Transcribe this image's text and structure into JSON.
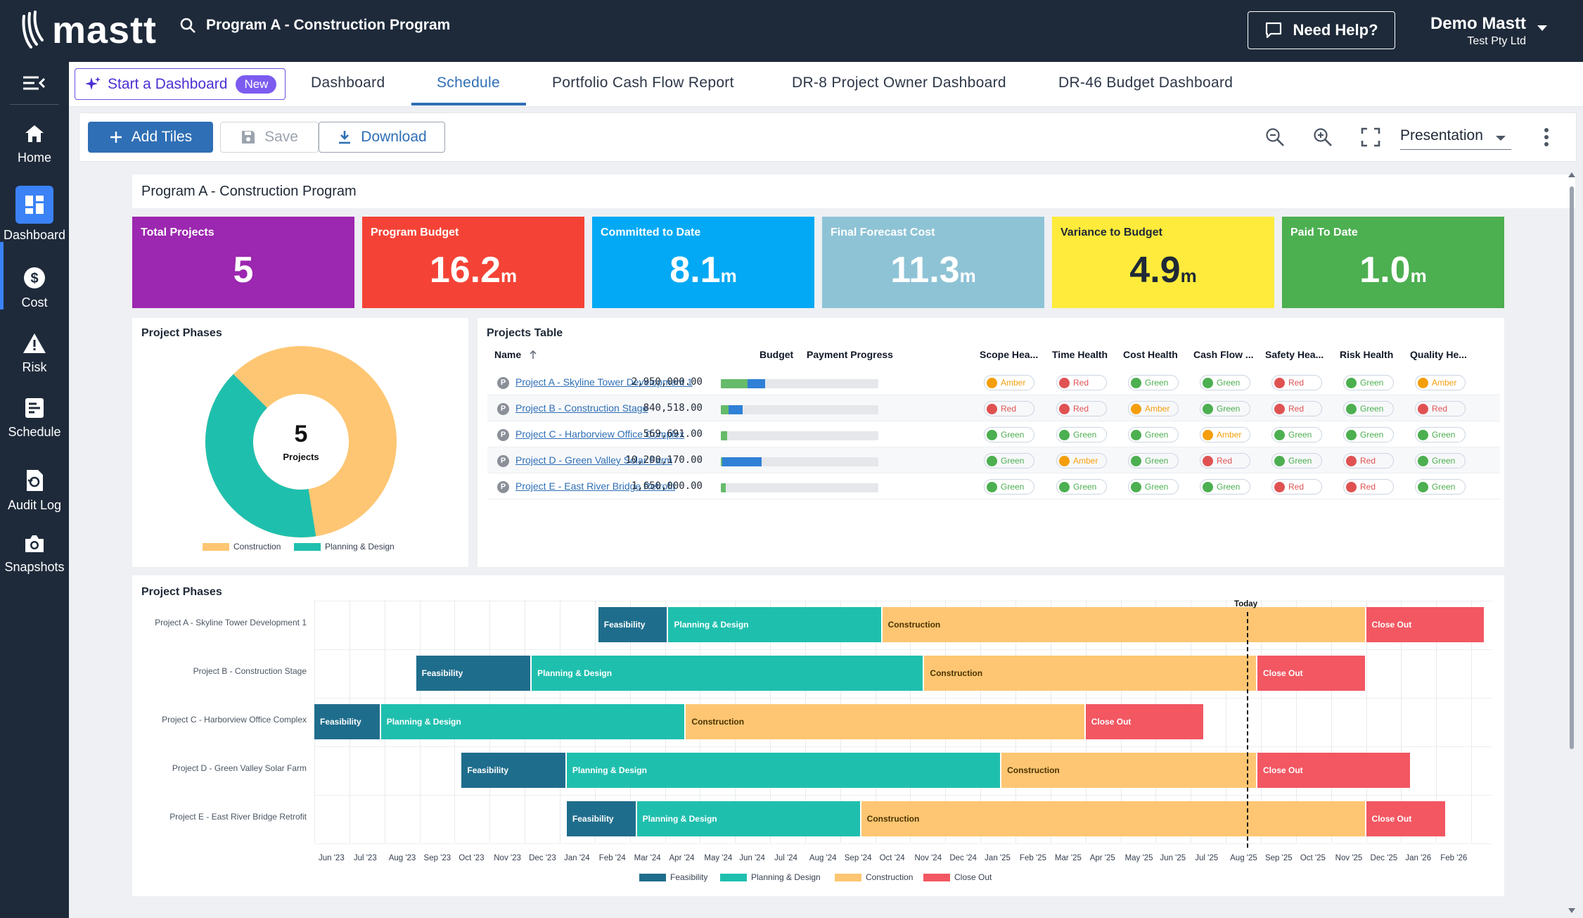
{
  "header": {
    "brand": "mastt",
    "search_text": "Program A - Construction Program",
    "help_label": "Need Help?",
    "user_name": "Demo Mastt",
    "user_org": "Test Pty Ltd"
  },
  "sidebar": {
    "items": [
      {
        "label": "Home",
        "icon": "home-icon"
      },
      {
        "label": "Dashboard",
        "icon": "dashboard-icon"
      },
      {
        "label": "Cost",
        "icon": "dollar-icon"
      },
      {
        "label": "Risk",
        "icon": "warning-icon"
      },
      {
        "label": "Schedule",
        "icon": "schedule-icon"
      },
      {
        "label": "Audit Log",
        "icon": "audit-icon"
      },
      {
        "label": "Snapshots",
        "icon": "camera-icon"
      }
    ]
  },
  "tabs": {
    "start_label": "Start a Dashboard",
    "new_badge": "New",
    "items": [
      "Dashboard",
      "Schedule",
      "Portfolio Cash Flow Report",
      "DR-8 Project Owner Dashboard",
      "DR-46 Budget Dashboard"
    ],
    "active": "Schedule"
  },
  "toolbar": {
    "add_tiles": "Add Tiles",
    "save": "Save",
    "download": "Download",
    "view_mode": "Presentation"
  },
  "page_title": "Program A - Construction Program",
  "kpis": [
    {
      "label": "Total Projects",
      "value": "5",
      "unit": "",
      "color": "#9c27b0"
    },
    {
      "label": "Program Budget",
      "value": "16.2",
      "unit": "m",
      "color": "#f44336"
    },
    {
      "label": "Committed to Date",
      "value": "8.1",
      "unit": "m",
      "color": "#03a9f4"
    },
    {
      "label": "Final Forecast Cost",
      "value": "11.3",
      "unit": "m",
      "color": "#8ec3d6"
    },
    {
      "label": "Variance to Budget",
      "value": "4.9",
      "unit": "m",
      "color": "#ffeb3b"
    },
    {
      "label": "Paid To Date",
      "value": "1.0",
      "unit": "m",
      "color": "#4caf50"
    }
  ],
  "donut": {
    "title": "Project Phases",
    "center_value": "5",
    "center_label": "Projects",
    "legend": [
      "Construction",
      "Planning & Design"
    ]
  },
  "projects_table": {
    "title": "Projects Table",
    "columns": [
      "Name",
      "Budget",
      "Payment Progress",
      "Scope Hea...",
      "Time Health",
      "Cost Health",
      "Cash Flow ...",
      "Safety Hea...",
      "Risk Health",
      "Quality He..."
    ],
    "rows": [
      {
        "icon": "P",
        "name": "Project A - Skyline Tower Development 1",
        "budget": "2,950,000.00",
        "progress": {
          "paid": 0.17,
          "committed": 0.28
        },
        "health": [
          "Amber",
          "Red",
          "Green",
          "Green",
          "Red",
          "Green",
          "Amber"
        ]
      },
      {
        "icon": "P",
        "name": "Project B - Construction Stage",
        "budget": "840,518.00",
        "progress": {
          "paid": 0.05,
          "committed": 0.14
        },
        "health": [
          "Red",
          "Red",
          "Amber",
          "Green",
          "Red",
          "Green",
          "Red"
        ]
      },
      {
        "icon": "P",
        "name": "Project C - Harborview Office Complex",
        "budget": "569,691.00",
        "progress": {
          "paid": 0.04,
          "committed": 0.04
        },
        "health": [
          "Green",
          "Green",
          "Green",
          "Amber",
          "Green",
          "Green",
          "Green"
        ]
      },
      {
        "icon": "P",
        "name": "Project D - Green Valley Solar Farm",
        "budget": "10,200,170.00",
        "progress": {
          "paid": 0.01,
          "committed": 0.26
        },
        "health": [
          "Green",
          "Amber",
          "Green",
          "Red",
          "Green",
          "Red",
          "Green"
        ]
      },
      {
        "icon": "P",
        "name": "Project E - East River Bridge Retrofit",
        "budget": "1,650,000.00",
        "progress": {
          "paid": 0.03,
          "committed": 0.03
        },
        "health": [
          "Green",
          "Green",
          "Green",
          "Green",
          "Red",
          "Red",
          "Green"
        ]
      }
    ]
  },
  "chart_data": {
    "type": "gantt",
    "title": "Project Phases",
    "today_label": "Today",
    "x_tick_labels": [
      "Jun '23",
      "Jul '23",
      "Aug '23",
      "Sep '23",
      "Oct '23",
      "Nov '23",
      "Dec '23",
      "Jan '24",
      "Feb '24",
      "Mar '24",
      "Apr '24",
      "May '24",
      "Jun '24",
      "Jul '24",
      "Aug '24",
      "Sep '24",
      "Oct '24",
      "Nov '24",
      "Dec '24",
      "Jan '25",
      "Feb '25",
      "Mar '25",
      "Apr '25",
      "May '25",
      "Jun '25",
      "Jul '25",
      "Aug '25",
      "Sep '25",
      "Oct '25",
      "Nov '25",
      "Dec '25",
      "Jan '26",
      "Feb '26"
    ],
    "x_range_months": [
      0,
      33.6
    ],
    "today_month": 26.6,
    "legend": [
      "Feasibility",
      "Planning & Design",
      "Construction",
      "Close Out"
    ],
    "colors": {
      "Feasibility": "#1f6d8c",
      "Planning & Design": "#1fbfae",
      "Construction": "#fec673",
      "Close Out": "#f25762"
    },
    "projects": [
      {
        "name": "Project A - Skyline Tower Development 1",
        "phases": [
          [
            "Feasibility",
            8.1,
            10.1
          ],
          [
            "Planning & Design",
            10.1,
            16.2
          ],
          [
            "Construction",
            16.2,
            30.0
          ],
          [
            "Close Out",
            30.0,
            33.4
          ]
        ]
      },
      {
        "name": "Project B - Construction Stage",
        "phases": [
          [
            "Feasibility",
            2.9,
            6.2
          ],
          [
            "Planning & Design",
            6.2,
            17.4
          ],
          [
            "Construction",
            17.4,
            26.9
          ],
          [
            "Close Out",
            26.9,
            30.0
          ]
        ]
      },
      {
        "name": "Project C - Harborview Office Complex",
        "phases": [
          [
            "Feasibility",
            0.0,
            1.9
          ],
          [
            "Planning & Design",
            1.9,
            10.6
          ],
          [
            "Construction",
            10.6,
            22.0
          ],
          [
            "Close Out",
            22.0,
            25.4
          ]
        ]
      },
      {
        "name": "Project D - Green Valley Solar Farm",
        "phases": [
          [
            "Feasibility",
            4.2,
            7.2
          ],
          [
            "Planning & Design",
            7.2,
            19.6
          ],
          [
            "Construction",
            19.6,
            26.9
          ],
          [
            "Close Out",
            26.9,
            31.3
          ]
        ]
      },
      {
        "name": "Project E - East River Bridge Retrofit",
        "phases": [
          [
            "Feasibility",
            7.2,
            9.2
          ],
          [
            "Planning & Design",
            9.2,
            15.6
          ],
          [
            "Construction",
            15.6,
            30.0
          ],
          [
            "Close Out",
            30.0,
            32.3
          ]
        ]
      }
    ]
  }
}
